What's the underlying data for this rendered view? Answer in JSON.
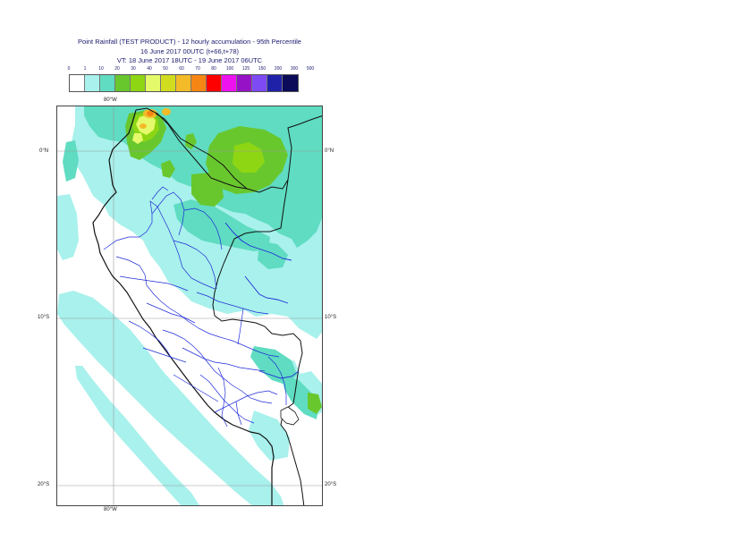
{
  "title": {
    "line1": "Point Rainfall (TEST PRODUCT) - 12 hourly accumulation - 95th Percentile",
    "line2": "16 June 2017 00UTC (t+66,t+78)",
    "line3": "VT: 18 June 2017 18UTC - 19 June 2017 06UTC"
  },
  "legend": {
    "thresholds": [
      "0",
      "1",
      "10",
      "20",
      "30",
      "40",
      "50",
      "60",
      "70",
      "80",
      "100",
      "125",
      "150",
      "200",
      "300",
      "500"
    ],
    "colors": [
      "#ffffff",
      "#a8f1ec",
      "#5fdcc1",
      "#69c72e",
      "#8ed613",
      "#e5fa6b",
      "#d2dc1e",
      "#f3bb28",
      "#f58613",
      "#ff0000",
      "#ee12ee",
      "#9512c6",
      "#7d4af3",
      "#1f22a9",
      "#0b0b59"
    ]
  },
  "map": {
    "lon_labels": {
      "top": "80°W",
      "bottom": "80°W"
    },
    "lat_labels": {
      "north": "0°N",
      "mid": "10°S",
      "south": "20°S"
    },
    "land_color": "#a8f1ec",
    "moderate_color": "#5fdcc1",
    "heavy_color": "#69c72e",
    "extreme_color": "#e5fa6b",
    "peak_color": "#f58613",
    "coast_color": "#111111",
    "river_color": "#1f2bd8"
  }
}
